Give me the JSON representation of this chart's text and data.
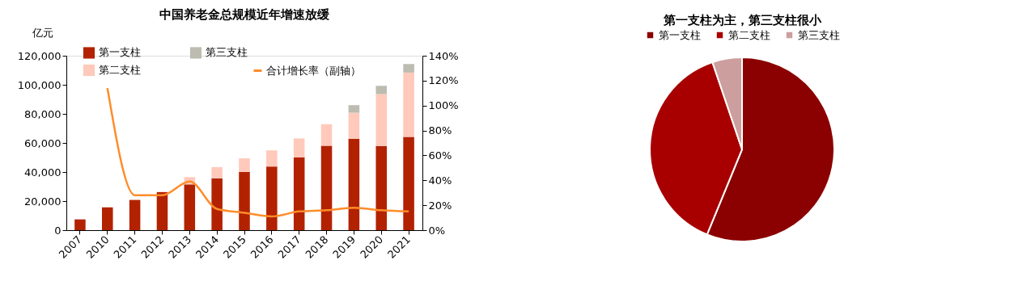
{
  "chart_data": [
    {
      "type": "bar",
      "title": "中国养老金总规模近年增速放缓",
      "ylabel": "亿元",
      "stacked": true,
      "legend": "top",
      "grid": false,
      "categories": [
        "2007",
        "2010",
        "2011",
        "2012",
        "2013",
        "2014",
        "2015",
        "2016",
        "2017",
        "2018",
        "2019",
        "2020",
        "2021"
      ],
      "series": [
        {
          "name": "第一支柱",
          "type": "bar",
          "color": "#b22200",
          "values": [
            7400,
            15700,
            20800,
            26200,
            31500,
            35700,
            40000,
            43800,
            50100,
            58100,
            62900,
            57900,
            64200
          ]
        },
        {
          "name": "第二支柱",
          "type": "bar",
          "color": "#ffc9bb",
          "values": [
            null,
            null,
            null,
            null,
            5000,
            7700,
            9400,
            11100,
            13000,
            14800,
            17900,
            35700,
            44200
          ]
        },
        {
          "name": "第三支柱",
          "type": "bar",
          "color": "#bcbcb0",
          "values": [
            null,
            null,
            null,
            null,
            null,
            null,
            null,
            null,
            null,
            null,
            5200,
            5700,
            5900
          ]
        },
        {
          "name": "合计增长率（副轴）",
          "type": "line",
          "axis": "y2",
          "color": "#ff8c2a",
          "values": [
            null,
            114,
            28,
            28,
            39,
            17,
            14,
            11,
            15,
            16,
            18,
            16,
            15
          ]
        }
      ],
      "ylim": [
        0,
        120000
      ],
      "yticks": [
        {
          "value": 0,
          "label": "0"
        },
        {
          "value": 20000,
          "label": "20,000"
        },
        {
          "value": 40000,
          "label": "40,000"
        },
        {
          "value": 60000,
          "label": "60,000"
        },
        {
          "value": 80000,
          "label": "80,000"
        },
        {
          "value": 100000,
          "label": "100,000"
        },
        {
          "value": 120000,
          "label": "120,000"
        }
      ],
      "y2lim": [
        0,
        140
      ],
      "y2ticks": [
        {
          "value": 0,
          "label": "0%"
        },
        {
          "value": 20,
          "label": "20%"
        },
        {
          "value": 40,
          "label": "40%"
        },
        {
          "value": 60,
          "label": "60%"
        },
        {
          "value": 80,
          "label": "80%"
        },
        {
          "value": 100,
          "label": "100%"
        },
        {
          "value": 120,
          "label": "120%"
        },
        {
          "value": 140,
          "label": "140%"
        }
      ]
    },
    {
      "type": "pie",
      "title": "第一支柱为主，第三支柱很小",
      "legend": "top",
      "categories": [
        "第一支柱",
        "第二支柱",
        "第三支柱"
      ],
      "values": [
        56.2,
        38.6,
        5.2
      ],
      "colors": [
        "#8b0000",
        "#a80000",
        "#cc9e9e"
      ]
    }
  ]
}
